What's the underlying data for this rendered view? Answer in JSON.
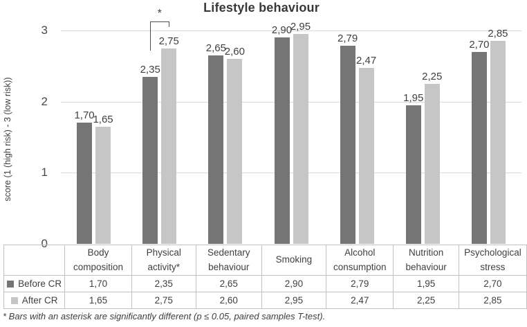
{
  "title": "Lifestyle behaviour",
  "footnote": "* Bars with an asterisk are significantly different (p ≤ 0.05, paired samples T-test).",
  "colors": {
    "before_cr_bar": "#757575",
    "after_cr_bar": "#c6c6c6",
    "gridline": "#d9d9d9",
    "table_border": "#c1c1c1",
    "text": "#3f3f3f",
    "bracket": "#4d4d4d"
  },
  "chart_data": {
    "type": "bar",
    "title": "Lifestyle behaviour",
    "xlabel": "",
    "ylabel": "score (1 (high risk) - 3 (low risk))",
    "ylim": [
      0,
      3
    ],
    "yticks": [
      0,
      1,
      2,
      3
    ],
    "grid": "horizontal",
    "legend_position": "table-left",
    "categories": [
      "Body composition",
      "Physical activity*",
      "Sedentary behaviour",
      "Smoking",
      "Alcohol consumption",
      "Nutrition behaviour",
      "Psychological stress"
    ],
    "series": [
      {
        "name": "Before CR",
        "color": "#757575",
        "values": [
          1.7,
          2.35,
          2.65,
          2.9,
          2.79,
          1.95,
          2.7
        ],
        "labels": [
          "1,70",
          "2,35",
          "2,65",
          "2,90",
          "2,79",
          "1,95",
          "2,70"
        ]
      },
      {
        "name": "After CR",
        "color": "#c6c6c6",
        "values": [
          1.65,
          2.75,
          2.6,
          2.95,
          2.47,
          2.25,
          2.85
        ],
        "labels": [
          "1,65",
          "2,75",
          "2,60",
          "2,95",
          "2,47",
          "2,25",
          "2,85"
        ]
      }
    ],
    "annotation": {
      "type": "significance-bracket",
      "category": "Physical activity*",
      "category_index": 1,
      "symbol": "*"
    }
  }
}
